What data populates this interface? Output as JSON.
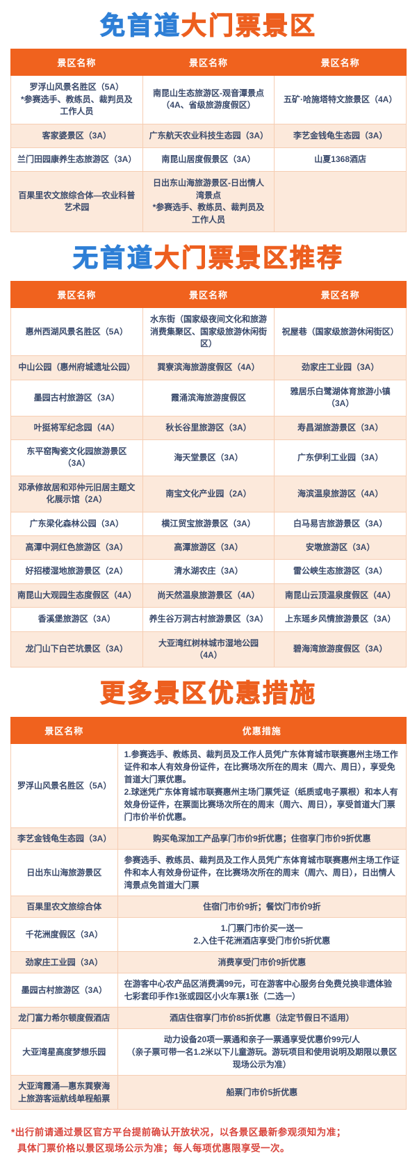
{
  "colors": {
    "title_blue": "#2E7FD6",
    "title_orange": "#ED5F1F",
    "table_header_bg": "#F0621E",
    "table_header_text": "#FFFFFF",
    "row_alt_bg": "#FCE9DB",
    "cell_border": "#F6CDB2",
    "cell_text": "#3A4A6B",
    "footnote_red": "#D9453C"
  },
  "section1": {
    "title": [
      {
        "text": "免首道",
        "color": "blue"
      },
      {
        "text": "大门票景区",
        "color": "orange"
      }
    ],
    "headers": [
      "景区名称",
      "景区名称",
      "景区名称"
    ],
    "rows": [
      [
        "罗浮山风景名胜区（5A）\n*参赛选手、教练员、裁判员及工作人员",
        "南昆山生态旅游区-观音潭景点\n（4A、省级旅游度假区）",
        "五矿·哈施塔特文旅景区（4A）"
      ],
      [
        "客家婆景区（3A）",
        "广东航天农业科技生态园（3A）",
        "李艺金钱龟生态园（3A）"
      ],
      [
        "兰门田园康养生态旅游区（3A）",
        "南昆山居度假景区（3A）",
        "山夏1368酒店"
      ],
      [
        "百果里农文旅综合体—农业科普艺术园",
        "日出东山海旅游景区-日出情人湾景点\n*参赛选手、教练员、裁判员及工作人员",
        ""
      ]
    ]
  },
  "section2": {
    "title": [
      {
        "text": "无首道",
        "color": "blue"
      },
      {
        "text": "大门票景区推荐",
        "color": "orange"
      }
    ],
    "headers": [
      "景区名称",
      "景区名称",
      "景区名称"
    ],
    "rows": [
      [
        "惠州西湖风景名胜区（5A）",
        "水东街（国家级夜间文化和旅游消费集聚区、国家级旅游休闲街区）",
        "祝屋巷（国家级旅游休闲街区）"
      ],
      [
        "中山公园（惠州府城遗址公园）",
        "巽寮滨海旅游度假区（4A）",
        "劲家庄工业园（3A）"
      ],
      [
        "墨园古村旅游区（3A）",
        "霞涌滨海旅游度假区",
        "雅居乐白鹭湖体育旅游小镇（3A）"
      ],
      [
        "叶挺将军纪念园（4A）",
        "秋长谷里旅游区（3A）",
        "寿昌湖旅游景区（3A）"
      ],
      [
        "东平窑陶瓷文化园旅游景区（3A）",
        "海天堂景区（3A）",
        "广东伊利工业园（3A）"
      ],
      [
        "邓承修故居和邓仲元旧居主题文化展示馆（2A）",
        "南宝文化产业园（2A）",
        "海滨温泉旅游区（4A）"
      ],
      [
        "广东梁化森林公园（3A）",
        "横江贸宝旅游景区（3A）",
        "白马易吉旅游景区（3A）"
      ],
      [
        "高潭中洞红色旅游区（3A）",
        "高潭旅游区（3A）",
        "安墩旅游区（3A）"
      ],
      [
        "好招楼湿地旅游景区（2A）",
        "清水湖农庄（3A）",
        "雷公峡生态旅游区（3A）"
      ],
      [
        "南昆山大观园生态度假区（4A）",
        "尚天然温泉旅游景区（4A）",
        "南昆山云顶温泉度假区（4A）"
      ],
      [
        "香溪堡旅游区（3A）",
        "养生谷万洞古村旅游景区（3A）",
        "上东瑶乡风情旅游景区（3A）"
      ],
      [
        "龙门山下白芒坑景区（3A）",
        "大亚湾红树林城市湿地公园（4A）",
        "碧海湾旅游度假区（3A）"
      ]
    ]
  },
  "section3": {
    "title": [
      {
        "text": "更多景区优惠措施",
        "color": "orange"
      }
    ],
    "headers": [
      "景区名称",
      "优惠措施"
    ],
    "rows": [
      {
        "name": "罗浮山风景名胜区（5A）",
        "offer": "1.参赛选手、教练员、裁判员及工作人员凭广东体育城市联赛惠州主场工作证件和本人有效身份证件，在比赛场次所在的周末（周六、周日），享受免首道大门票优惠。\n2.球迷凭广东体育城市联赛惠州主场门票凭证（纸质或电子票根）和本人有效身份证件，在票面比赛场次所在的周末（周六、周日），享受首道大门票门市价半价优惠。",
        "align": "left"
      },
      {
        "name": "李艺金钱龟生态园（3A）",
        "offer": "购买龟深加工产品享门市价9折优惠；住宿享门市价9折优惠",
        "align": "center"
      },
      {
        "name": "日出东山海旅游景区",
        "offer": "参赛选手、教练员、裁判员及工作人员凭广东体育城市联赛惠州主场工作证件和本人有效身份证件，在比赛场次所在的周末（周六、周日），日出情人湾景点免首道大门票",
        "align": "left"
      },
      {
        "name": "百果里农文旅综合体",
        "offer": "住宿门市价9折；餐饮门市价9折",
        "align": "center"
      },
      {
        "name": "千花洲度假区（3A）",
        "offer": "1.门票门市价买一送一\n2.入住千花洲酒店享受门市价5折优惠",
        "align": "center"
      },
      {
        "name": "劲家庄工业园（3A）",
        "offer": "消费享受门市价9折优惠",
        "align": "center"
      },
      {
        "name": "墨园古村旅游区（3A）",
        "offer": "在游客中心农产品区消费满99元，可在游客中心服务台免费兑换非遗体验七彩套印手作1张或园区小火车票1张（二选一）",
        "align": "left"
      },
      {
        "name": "龙门富力希尔顿度假酒店",
        "offer": "酒店住宿享门市价85折优惠（法定节假日不适用）",
        "align": "center"
      },
      {
        "name": "大亚湾星高度梦想乐园",
        "offer": "动力设备20项一票通和亲子一票通享受优惠价99元/人\n（亲子票可带一名1.2米以下儿童游玩。游玩项目和使用说明及期限以景区现场公示为准）",
        "align": "center"
      },
      {
        "name": "大亚湾霞涌—惠东巽寮海上旅游客运航线单程船票",
        "offer": "船票门市价5折优惠",
        "align": "center"
      }
    ]
  },
  "footnote": {
    "line1": "*出行前请通过景区官方平台提前确认开放状况，以各景区最新参观须知为准；",
    "line2": "具体门票价格以景区现场公示为准；每人每项优惠限享受一次。"
  }
}
